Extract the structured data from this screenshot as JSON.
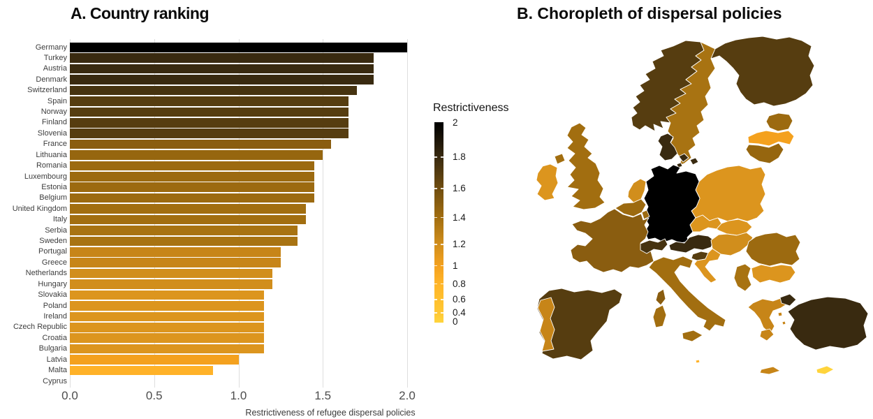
{
  "figure": {
    "panel_a_title": "A. Country ranking",
    "panel_b_title": "B. Choropleth of dispersal policies",
    "x_axis_label": "Restrictiveness of refugee dispersal policies",
    "legend_title": "Restrictiveness"
  },
  "chart_data": [
    {
      "type": "bar",
      "orientation": "horizontal",
      "title": "A. Country ranking",
      "xlabel": "Restrictiveness of refugee dispersal policies",
      "xlim": [
        0,
        2
      ],
      "x_tick_values": [
        0,
        0.5,
        1,
        1.5,
        2
      ],
      "x_tick_labels": [
        "0.0",
        "0.5",
        "1.0",
        "1.5",
        "2.0"
      ],
      "grid": "vertical-major-only",
      "categories": [
        "Germany",
        "Turkey",
        "Austria",
        "Denmark",
        "Switzerland",
        "Spain",
        "Norway",
        "Finland",
        "Slovenia",
        "France",
        "Lithuania",
        "Romania",
        "Luxembourg",
        "Estonia",
        "Belgium",
        "United Kingdom",
        "Italy",
        "Serbia",
        "Sweden",
        "Portugal",
        "Greece",
        "Netherlands",
        "Hungary",
        "Slovakia",
        "Poland",
        "Ireland",
        "Czech Republic",
        "Croatia",
        "Bulgaria",
        "Latvia",
        "Malta",
        "Cyprus"
      ],
      "values": [
        2.0,
        1.8,
        1.8,
        1.8,
        1.7,
        1.65,
        1.65,
        1.65,
        1.65,
        1.55,
        1.5,
        1.45,
        1.45,
        1.45,
        1.45,
        1.4,
        1.4,
        1.35,
        1.35,
        1.25,
        1.25,
        1.2,
        1.2,
        1.15,
        1.15,
        1.15,
        1.15,
        1.15,
        1.15,
        1.0,
        0.85,
        0
      ],
      "legend": {
        "title": "Restrictiveness",
        "tick_values": [
          2,
          1.8,
          1.6,
          1.4,
          1.2,
          1,
          0.8,
          0.6,
          0.4,
          0
        ],
        "tick_labels": [
          "2",
          "1.8",
          "1.6",
          "1.4",
          "1.2",
          "1",
          "0.8",
          "0.6",
          "0.4",
          "0"
        ],
        "tick_positions_pct": [
          0.3,
          17.4,
          33.1,
          47.7,
          61.0,
          71.7,
          80.7,
          88.6,
          95.2,
          99.8
        ],
        "low_color": "#FFD43C",
        "high_color": "#000000",
        "position": "between-panels"
      }
    },
    {
      "type": "choropleth",
      "title": "B. Choropleth of dispersal policies",
      "region": "Europe",
      "variable": "Restrictiveness",
      "no_data_fill": "white",
      "countries": [
        {
          "name": "Germany",
          "value": 2.0
        },
        {
          "name": "Turkey",
          "value": 1.8
        },
        {
          "name": "Austria",
          "value": 1.8
        },
        {
          "name": "Denmark",
          "value": 1.8
        },
        {
          "name": "Switzerland",
          "value": 1.7
        },
        {
          "name": "Spain",
          "value": 1.65
        },
        {
          "name": "Norway",
          "value": 1.65
        },
        {
          "name": "Finland",
          "value": 1.65
        },
        {
          "name": "Slovenia",
          "value": 1.65
        },
        {
          "name": "France",
          "value": 1.55
        },
        {
          "name": "Lithuania",
          "value": 1.5
        },
        {
          "name": "Romania",
          "value": 1.45
        },
        {
          "name": "Luxembourg",
          "value": 1.45
        },
        {
          "name": "Estonia",
          "value": 1.45
        },
        {
          "name": "Belgium",
          "value": 1.45
        },
        {
          "name": "United Kingdom",
          "value": 1.4
        },
        {
          "name": "Italy",
          "value": 1.4
        },
        {
          "name": "Serbia",
          "value": 1.35
        },
        {
          "name": "Sweden",
          "value": 1.35
        },
        {
          "name": "Portugal",
          "value": 1.25
        },
        {
          "name": "Greece",
          "value": 1.25
        },
        {
          "name": "Netherlands",
          "value": 1.2
        },
        {
          "name": "Hungary",
          "value": 1.2
        },
        {
          "name": "Slovakia",
          "value": 1.15
        },
        {
          "name": "Poland",
          "value": 1.15
        },
        {
          "name": "Ireland",
          "value": 1.15
        },
        {
          "name": "Czech Republic",
          "value": 1.15
        },
        {
          "name": "Croatia",
          "value": 1.15
        },
        {
          "name": "Bulgaria",
          "value": 1.15
        },
        {
          "name": "Latvia",
          "value": 1.0
        },
        {
          "name": "Malta",
          "value": 0.85
        },
        {
          "name": "Cyprus",
          "value": 0
        }
      ]
    }
  ]
}
